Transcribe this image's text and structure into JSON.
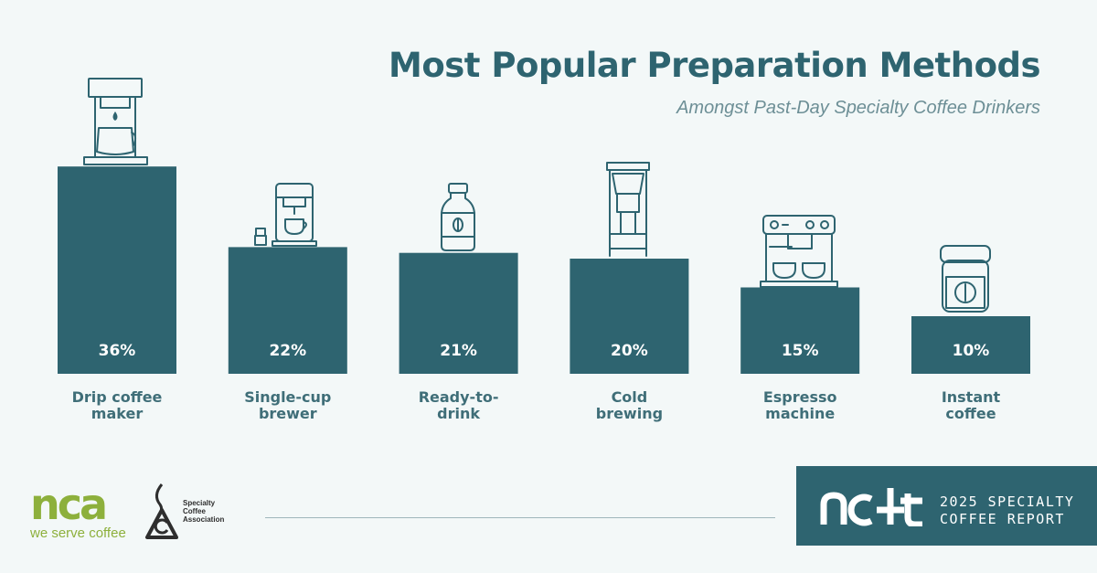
{
  "header": {
    "title": "Most Popular Preparation Methods",
    "subtitle": "Amongst Past-Day Specialty Coffee Drinkers"
  },
  "chart_data": {
    "type": "bar",
    "title": "Most Popular Preparation Methods",
    "subtitle": "Amongst Past-Day Specialty Coffee Drinkers",
    "xlabel": "",
    "ylabel": "",
    "unit": "%",
    "ylim": [
      0,
      40
    ],
    "grid": false,
    "categories": [
      [
        "Drip coffee",
        "maker"
      ],
      [
        "Single-cup",
        "brewer"
      ],
      [
        "Ready-to-",
        "drink"
      ],
      [
        "Cold",
        "brewing"
      ],
      [
        "Espresso",
        "machine"
      ],
      [
        "Instant",
        "coffee"
      ]
    ],
    "values": [
      36,
      22,
      21,
      20,
      15,
      10
    ],
    "value_labels": [
      "36%",
      "22%",
      "21%",
      "20%",
      "15%",
      "10%"
    ],
    "icons": [
      "drip-coffee-maker-icon",
      "single-cup-brewer-icon",
      "bottle-icon",
      "cold-brew-carafe-icon",
      "espresso-machine-icon",
      "instant-coffee-jar-icon"
    ],
    "bar_color": "#2e6470"
  },
  "footer": {
    "nca_logo": {
      "word": "nca",
      "tagline": "we serve coffee",
      "color": "#8db03c"
    },
    "sca_logo": {
      "lines": [
        "Specialty",
        "Coffee",
        "Association"
      ]
    },
    "report": {
      "mark": "ncdt",
      "line1": "2025 SPECIALTY",
      "line2": "COFFEE  REPORT",
      "bg_color": "#2e6470"
    }
  },
  "colors": {
    "background": "#f3f8f8",
    "accent": "#2e6470",
    "muted": "#6d8f96",
    "nca_green": "#8db03c"
  }
}
